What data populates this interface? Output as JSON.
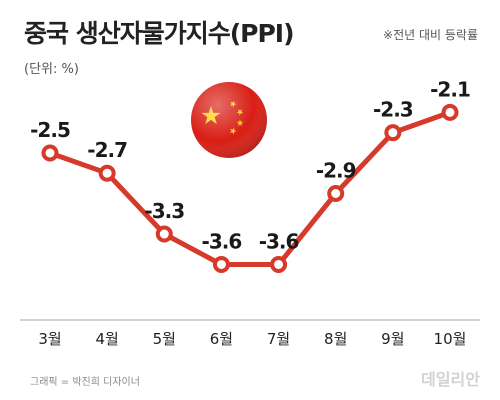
{
  "header": {
    "title": "중국 생산자물가지수(PPI)",
    "note": "※전년 대비 등락률",
    "unit": "(단위: %)"
  },
  "footer": {
    "credit": "그래픽 = 박진희 디자이너",
    "logo": "데일리안"
  },
  "colors": {
    "line": "#d63a2a",
    "marker_fill": "#ffffff",
    "axis": "#aaaaaa",
    "flag_red": "#d81e15",
    "flag_star": "#ffd21e"
  },
  "icons": {
    "flag": "china-flag-icon"
  },
  "chart_data": {
    "type": "line",
    "title": "중국 생산자물가지수(PPI)",
    "xlabel": "",
    "ylabel": "",
    "categories": [
      "3월",
      "4월",
      "5월",
      "6월",
      "7월",
      "8월",
      "9월",
      "10월"
    ],
    "series": [
      {
        "values": [
          -2.5,
          -2.7,
          -3.3,
          -3.6,
          -3.6,
          -2.9,
          -2.3,
          -2.1
        ]
      }
    ],
    "value_labels": [
      "-2.5",
      "-2.7",
      "-3.3",
      "-3.6",
      "-3.6",
      "-2.9",
      "-2.3",
      "-2.1"
    ],
    "ylim": [
      -4.0,
      -1.8
    ],
    "grid": false,
    "legend": "none"
  }
}
